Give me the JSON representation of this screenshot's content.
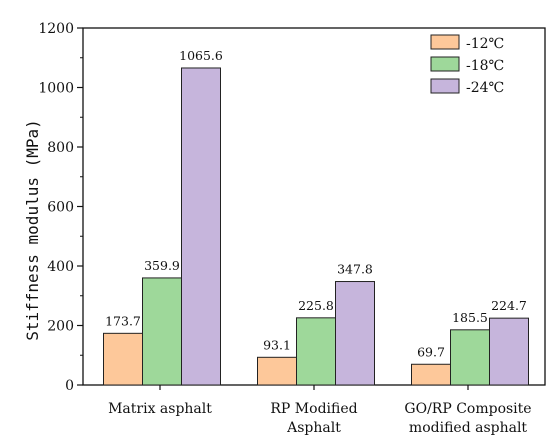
{
  "chart_data": {
    "type": "bar",
    "categories": [
      [
        "Matrix asphalt"
      ],
      [
        "RP Modified",
        "Asphalt"
      ],
      [
        "GO/RP Composite",
        "modified asphalt"
      ]
    ],
    "series": [
      {
        "name": "-12℃",
        "color": "#fdc89a",
        "values": [
          173.7,
          93.1,
          69.7
        ]
      },
      {
        "name": "-18℃",
        "color": "#9ed89a",
        "values": [
          359.9,
          225.8,
          185.5
        ]
      },
      {
        "name": "-24℃",
        "color": "#c6b5dc",
        "values": [
          1065.6,
          347.8,
          224.7
        ]
      }
    ],
    "data_labels": [
      [
        "173.7",
        "93.1",
        "69.7"
      ],
      [
        "359.9",
        "225.8",
        "185.5"
      ],
      [
        "1065.6",
        "347.8",
        "224.7"
      ]
    ],
    "ylabel": "Stiffness modulus (MPa)",
    "ylim": [
      0,
      1200
    ],
    "yticks": [
      0,
      200,
      400,
      600,
      800,
      1000,
      1200
    ],
    "grid": false,
    "legend_position": "top-right"
  }
}
